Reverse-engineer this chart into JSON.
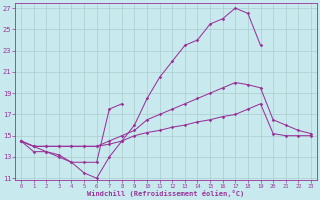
{
  "xlabel": "Windchill (Refroidissement éolien,°C)",
  "bg_color": "#c8eaee",
  "line_color": "#993399",
  "grid_color": "#aacccc",
  "xlim": [
    -0.5,
    23.5
  ],
  "ylim": [
    10.8,
    27.5
  ],
  "xticks": [
    0,
    1,
    2,
    3,
    4,
    5,
    6,
    7,
    8,
    9,
    10,
    11,
    12,
    13,
    14,
    15,
    16,
    17,
    18,
    19,
    20,
    21,
    22,
    23
  ],
  "yticks": [
    11,
    13,
    15,
    17,
    19,
    21,
    23,
    25,
    27
  ],
  "lines": [
    {
      "x": [
        0,
        1,
        2,
        3,
        4,
        5,
        6,
        7,
        8,
        9,
        10,
        11,
        12,
        13,
        14,
        15,
        16,
        17,
        18,
        19
      ],
      "y": [
        14.5,
        13.5,
        13.5,
        13.2,
        12.5,
        11.5,
        11.0,
        13.0,
        14.5,
        16.0,
        18.5,
        20.5,
        22.0,
        23.5,
        24.0,
        25.5,
        26.0,
        27.0,
        26.5,
        23.5
      ]
    },
    {
      "x": [
        0,
        1,
        2,
        3,
        4,
        5,
        6,
        7,
        8
      ],
      "y": [
        14.5,
        14.0,
        13.5,
        13.0,
        12.5,
        12.5,
        12.5,
        17.5,
        18.0
      ]
    },
    {
      "x": [
        0,
        1,
        2,
        3,
        4,
        5,
        6,
        7,
        8,
        9,
        10,
        11,
        12,
        13,
        14,
        15,
        16,
        17,
        18,
        19,
        20,
        21,
        22,
        23
      ],
      "y": [
        14.5,
        14.0,
        14.0,
        14.0,
        14.0,
        14.0,
        14.0,
        14.5,
        15.0,
        15.5,
        16.5,
        17.0,
        17.5,
        18.0,
        18.5,
        19.0,
        19.5,
        20.0,
        19.8,
        19.5,
        16.5,
        16.0,
        15.5,
        15.2
      ]
    },
    {
      "x": [
        0,
        1,
        2,
        3,
        4,
        5,
        6,
        7,
        8,
        9,
        10,
        11,
        12,
        13,
        14,
        15,
        16,
        17,
        18,
        19,
        20,
        21,
        22,
        23
      ],
      "y": [
        14.5,
        14.0,
        14.0,
        14.0,
        14.0,
        14.0,
        14.0,
        14.2,
        14.5,
        15.0,
        15.3,
        15.5,
        15.8,
        16.0,
        16.3,
        16.5,
        16.8,
        17.0,
        17.5,
        18.0,
        15.2,
        15.0,
        15.0,
        15.0
      ]
    }
  ]
}
